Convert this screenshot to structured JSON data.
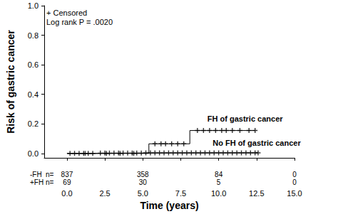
{
  "chart_data": {
    "type": "line",
    "x_label": "Time (years)",
    "y_label": "Risk of gastric cancer",
    "xlim": [
      -1.5,
      15
    ],
    "xticks": [
      {
        "value": 0,
        "label": "0.0"
      },
      2.5,
      {
        "value": 5,
        "label": "5.0"
      },
      7.5,
      {
        "value": 10,
        "label": "10.0"
      },
      12.5,
      {
        "value": 15,
        "label": "15.0"
      }
    ],
    "ylim": [
      -0.03,
      1
    ],
    "yticks": [
      {
        "value": 0,
        "label": "0.0"
      },
      0.2,
      0.4,
      0.6,
      0.8,
      {
        "value": 1,
        "label": "1.0"
      }
    ],
    "grid": false,
    "annotations": [
      "+ Censored",
      "Log rank P = .0020"
    ],
    "series": [
      {
        "name": "FH of gastric cancer",
        "color": "#000000",
        "line_style": "step",
        "marker": "plus",
        "x": [
          0,
          5.4,
          8.1,
          12.4
        ],
        "values": [
          0,
          0.065,
          0.155,
          0.155
        ],
        "censored_x": [
          1.2,
          2.6,
          3.5,
          4.4,
          5.8,
          6.2,
          6.5,
          6.9,
          7.3,
          7.7,
          8.6,
          9.0,
          9.4,
          9.8,
          10.2,
          10.5,
          10.9,
          11.4,
          12.0,
          12.4
        ],
        "censored_values": [
          0,
          0,
          0,
          0,
          0.065,
          0.065,
          0.065,
          0.065,
          0.065,
          0.065,
          0.155,
          0.155,
          0.155,
          0.155,
          0.155,
          0.155,
          0.155,
          0.155,
          0.155,
          0.155
        ]
      },
      {
        "name": "No FH of gastric cancer",
        "color": "#000000",
        "line_style": "step",
        "marker": "plus",
        "x": [
          0,
          2,
          5,
          12.6
        ],
        "values": [
          0,
          0.002,
          0.004,
          0.004
        ],
        "censored_x": [
          0.2,
          0.5,
          0.8,
          1.1,
          1.4,
          1.7,
          2.2,
          2.5,
          2.8,
          3.1,
          3.4,
          3.7,
          4.0,
          4.3,
          4.6,
          4.9,
          5.2,
          5.5,
          5.8,
          6.1,
          6.4,
          6.7,
          7.0,
          7.3,
          7.6,
          7.9,
          8.2,
          8.5,
          8.8,
          9.1,
          9.4,
          9.7,
          10.0,
          10.3,
          10.6,
          10.9,
          11.2,
          11.5,
          11.8,
          12.1,
          12.4,
          12.6
        ],
        "censored_values": [
          0,
          0,
          0,
          0,
          0,
          0,
          0.002,
          0.002,
          0.002,
          0.002,
          0.002,
          0.002,
          0.002,
          0.002,
          0.002,
          0.002,
          0.004,
          0.004,
          0.004,
          0.004,
          0.004,
          0.004,
          0.004,
          0.004,
          0.004,
          0.004,
          0.004,
          0.004,
          0.004,
          0.004,
          0.004,
          0.004,
          0.004,
          0.004,
          0.004,
          0.004,
          0.004,
          0.004,
          0.004,
          0.004,
          0.004,
          0.004
        ]
      }
    ],
    "at_risk": {
      "label": "n=",
      "times": [
        0,
        5,
        10,
        15
      ],
      "rows": [
        {
          "label": "-FH",
          "values": [
            837,
            358,
            84,
            0
          ]
        },
        {
          "label": "+FH",
          "values": [
            69,
            30,
            5,
            0
          ]
        }
      ]
    }
  }
}
